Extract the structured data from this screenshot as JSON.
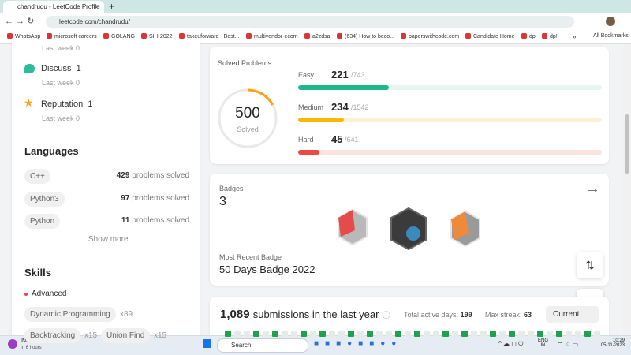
{
  "browser": {
    "tab_title": "chandrudu - LeetCode Profile",
    "url": "leetcode.com/chandrudu/",
    "bookmarks": [
      "WhatsApp",
      "microsoft careers",
      "GOLANG",
      "SIH-2022",
      "takeuforward - Best...",
      "multivendor-ecom",
      "a2zdsa",
      "(634) How to beco...",
      "paperswithcode.com",
      "Candidate Home",
      "dp",
      "dp!"
    ],
    "more": "»",
    "all_bookmarks": "All Bookmarks"
  },
  "community": {
    "top_last_week": {
      "label": "Last week",
      "value": "0"
    },
    "items": [
      {
        "name": "Discuss",
        "value": "1",
        "last_week_label": "Last week",
        "last_week": "0"
      },
      {
        "name": "Reputation",
        "value": "1",
        "last_week_label": "Last week",
        "last_week": "0"
      }
    ]
  },
  "languages": {
    "title": "Languages",
    "items": [
      {
        "name": "C++",
        "count": "429",
        "suffix": "problems solved"
      },
      {
        "name": "Python3",
        "count": "97",
        "suffix": "problems solved"
      },
      {
        "name": "Python",
        "count": "11",
        "suffix": "problems solved"
      }
    ],
    "show_more": "Show more"
  },
  "skills": {
    "title": "Skills",
    "level": "Advanced",
    "items": [
      {
        "name": "Dynamic Programming",
        "count": "x89"
      },
      {
        "name": "Backtracking",
        "count": "x15"
      },
      {
        "name": "Union Find",
        "count": "x15"
      }
    ]
  },
  "solved": {
    "title": "Solved Problems",
    "total": 500,
    "total_label": "Solved",
    "rows": [
      {
        "label": "Easy",
        "solved": 221,
        "total": "/743",
        "color": "#1cb88e",
        "track": "#e4f6ef"
      },
      {
        "label": "Medium",
        "solved": 234,
        "total": "/1542",
        "color": "#ffb700",
        "track": "#fdf2d6"
      },
      {
        "label": "Hard",
        "solved": 45,
        "total": "/641",
        "color": "#ef4743",
        "track": "#fbe3e2"
      }
    ]
  },
  "badges": {
    "title": "Badges",
    "count": "3",
    "recent_label": "Most Recent Badge",
    "recent": "50 Days Badge 2022"
  },
  "submissions": {
    "count": "1,089",
    "text": "submissions in the last year",
    "active_label": "Total active days:",
    "active": "199",
    "streak_label": "Max streak:",
    "streak": "63",
    "dropdown": "Current"
  },
  "taskbar": {
    "weather": "IND - SA",
    "weather_sub": "In 6 hours",
    "search": "Search",
    "lang": "ENG",
    "region": "IN",
    "time": "10:29",
    "date": "05-11-2023"
  }
}
